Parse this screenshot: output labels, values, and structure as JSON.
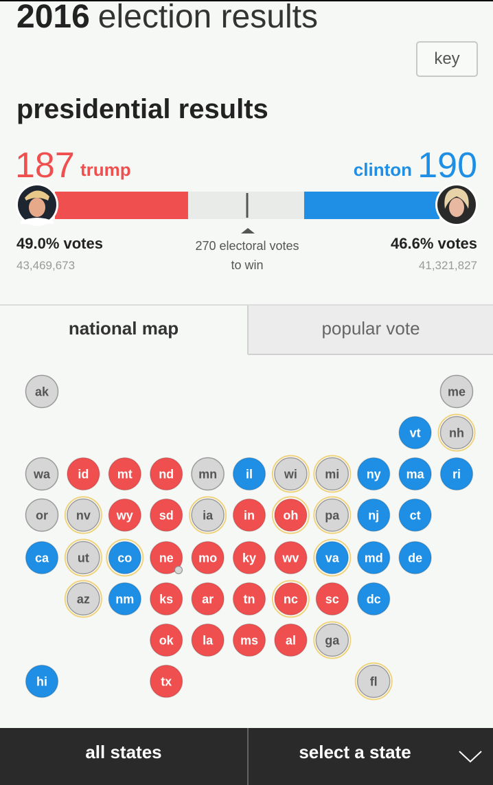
{
  "header": {
    "year": "2016",
    "title": "election results"
  },
  "key_button": "key",
  "section_title": "presidential results",
  "candidates": [
    {
      "name": "trump",
      "electoral": 187,
      "color": "#ef4f4f",
      "popular_share": "49.0% votes",
      "popular_votes": "43,469,673"
    },
    {
      "name": "clinton",
      "electoral": 190,
      "color": "#1e8fe4",
      "popular_share": "46.6% votes",
      "popular_votes": "41,321,827"
    }
  ],
  "threshold": {
    "value": 270,
    "label": "270 electoral votes"
  },
  "threshold_note": "to win",
  "tabs": [
    "national map",
    "popular vote"
  ],
  "states": [
    {
      "abbr": "ak",
      "color": "#d6d6d6",
      "ring": false
    },
    {
      "abbr": "me",
      "color": "#d6d6d6",
      "ring": false
    },
    {
      "abbr": "vt",
      "color": "#1e8fe4",
      "ring": false
    },
    {
      "abbr": "nh",
      "color": "#d6d6d6",
      "ring": true
    },
    {
      "abbr": "wa",
      "color": "#d6d6d6",
      "ring": false
    },
    {
      "abbr": "id",
      "color": "#ef4f4f",
      "ring": false
    },
    {
      "abbr": "mt",
      "color": "#ef4f4f",
      "ring": false
    },
    {
      "abbr": "nd",
      "color": "#ef4f4f",
      "ring": false
    },
    {
      "abbr": "mn",
      "color": "#d6d6d6",
      "ring": false
    },
    {
      "abbr": "il",
      "color": "#1e8fe4",
      "ring": false
    },
    {
      "abbr": "wi",
      "color": "#d6d6d6",
      "ring": true
    },
    {
      "abbr": "mi",
      "color": "#d6d6d6",
      "ring": true
    },
    {
      "abbr": "ny",
      "color": "#1e8fe4",
      "ring": false
    },
    {
      "abbr": "ma",
      "color": "#1e8fe4",
      "ring": false
    },
    {
      "abbr": "ri",
      "color": "#1e8fe4",
      "ring": false
    },
    {
      "abbr": "or",
      "color": "#d6d6d6",
      "ring": false
    },
    {
      "abbr": "nv",
      "color": "#d6d6d6",
      "ring": true
    },
    {
      "abbr": "wy",
      "color": "#ef4f4f",
      "ring": false
    },
    {
      "abbr": "sd",
      "color": "#ef4f4f",
      "ring": false
    },
    {
      "abbr": "ia",
      "color": "#d6d6d6",
      "ring": true
    },
    {
      "abbr": "in",
      "color": "#ef4f4f",
      "ring": false
    },
    {
      "abbr": "oh",
      "color": "#ef4f4f",
      "ring": true
    },
    {
      "abbr": "pa",
      "color": "#d6d6d6",
      "ring": true
    },
    {
      "abbr": "nj",
      "color": "#1e8fe4",
      "ring": false
    },
    {
      "abbr": "ct",
      "color": "#1e8fe4",
      "ring": false
    },
    {
      "abbr": "ca",
      "color": "#1e8fe4",
      "ring": false
    },
    {
      "abbr": "ut",
      "color": "#d6d6d6",
      "ring": true
    },
    {
      "abbr": "co",
      "color": "#1e8fe4",
      "ring": true
    },
    {
      "abbr": "ne",
      "color": "#ef4f4f",
      "ring": false
    },
    {
      "abbr": "mo",
      "color": "#ef4f4f",
      "ring": false
    },
    {
      "abbr": "ky",
      "color": "#ef4f4f",
      "ring": false
    },
    {
      "abbr": "wv",
      "color": "#ef4f4f",
      "ring": false
    },
    {
      "abbr": "va",
      "color": "#1e8fe4",
      "ring": true
    },
    {
      "abbr": "md",
      "color": "#1e8fe4",
      "ring": false
    },
    {
      "abbr": "de",
      "color": "#1e8fe4",
      "ring": false
    },
    {
      "abbr": "az",
      "color": "#d6d6d6",
      "ring": true
    },
    {
      "abbr": "nm",
      "color": "#1e8fe4",
      "ring": false
    },
    {
      "abbr": "ks",
      "color": "#ef4f4f",
      "ring": false
    },
    {
      "abbr": "ar",
      "color": "#ef4f4f",
      "ring": false
    },
    {
      "abbr": "tn",
      "color": "#ef4f4f",
      "ring": false
    },
    {
      "abbr": "nc",
      "color": "#ef4f4f",
      "ring": true
    },
    {
      "abbr": "sc",
      "color": "#ef4f4f",
      "ring": false
    },
    {
      "abbr": "dc",
      "color": "#1e8fe4",
      "ring": false
    },
    {
      "abbr": "ok",
      "color": "#ef4f4f",
      "ring": false
    },
    {
      "abbr": "la",
      "color": "#ef4f4f",
      "ring": false
    },
    {
      "abbr": "ms",
      "color": "#ef4f4f",
      "ring": false
    },
    {
      "abbr": "al",
      "color": "#ef4f4f",
      "ring": false
    },
    {
      "abbr": "ga",
      "color": "#d6d6d6",
      "ring": true
    },
    {
      "abbr": "hi",
      "color": "#1e8fe4",
      "ring": false
    },
    {
      "abbr": "tx",
      "color": "#ef4f4f",
      "ring": false
    },
    {
      "abbr": "fl",
      "color": "#d6d6d6",
      "ring": true
    }
  ],
  "footer": {
    "left": "all states",
    "right": "select a state"
  }
}
